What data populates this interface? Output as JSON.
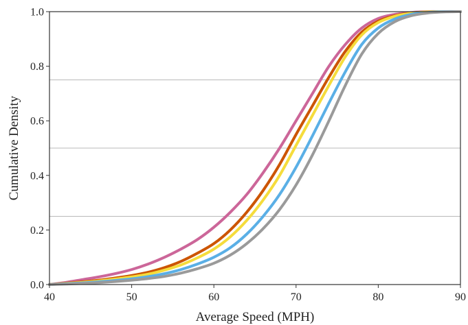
{
  "chart_data": {
    "type": "line",
    "title": "",
    "xlabel": "Average Speed (MPH)",
    "ylabel": "Cumulative Density",
    "xlim": [
      40,
      90
    ],
    "ylim": [
      0,
      1
    ],
    "xticks": [
      "40",
      "50",
      "60",
      "70",
      "80",
      "90"
    ],
    "yticks": [
      "0.0",
      "0.2",
      "0.4",
      "0.6",
      "0.8",
      "1.0"
    ],
    "reference_lines_y": [
      0.25,
      0.5,
      0.75
    ],
    "grid": false,
    "x": [
      40,
      42,
      44,
      46,
      48,
      50,
      52,
      54,
      56,
      58,
      60,
      62,
      64,
      66,
      68,
      70,
      72,
      74,
      76,
      78,
      80,
      82,
      84,
      86,
      88,
      90
    ],
    "series": [
      {
        "color": "#cc6699",
        "values": [
          0.0,
          0.008,
          0.018,
          0.028,
          0.04,
          0.055,
          0.075,
          0.1,
          0.13,
          0.165,
          0.21,
          0.265,
          0.33,
          0.41,
          0.5,
          0.6,
          0.7,
          0.8,
          0.88,
          0.94,
          0.975,
          0.99,
          0.997,
          1.0,
          1.0,
          1.0
        ]
      },
      {
        "color": "#cc5500",
        "values": [
          0.0,
          0.005,
          0.01,
          0.016,
          0.024,
          0.033,
          0.045,
          0.062,
          0.085,
          0.115,
          0.15,
          0.2,
          0.265,
          0.345,
          0.44,
          0.55,
          0.655,
          0.76,
          0.855,
          0.925,
          0.965,
          0.985,
          0.995,
          0.999,
          1.0,
          1.0
        ]
      },
      {
        "color": "#f5dc3c",
        "values": [
          0.0,
          0.004,
          0.008,
          0.013,
          0.02,
          0.028,
          0.038,
          0.053,
          0.072,
          0.098,
          0.13,
          0.175,
          0.235,
          0.31,
          0.4,
          0.51,
          0.62,
          0.73,
          0.835,
          0.915,
          0.96,
          0.983,
          0.994,
          0.999,
          1.0,
          1.0
        ]
      },
      {
        "color": "#5aafe6",
        "values": [
          0.0,
          0.003,
          0.006,
          0.01,
          0.015,
          0.021,
          0.029,
          0.04,
          0.055,
          0.075,
          0.1,
          0.135,
          0.185,
          0.25,
          0.33,
          0.43,
          0.545,
          0.665,
          0.78,
          0.88,
          0.94,
          0.973,
          0.99,
          0.997,
          1.0,
          1.0
        ]
      },
      {
        "color": "#9a9a9a",
        "values": [
          0.0,
          0.002,
          0.004,
          0.007,
          0.011,
          0.016,
          0.022,
          0.03,
          0.042,
          0.058,
          0.078,
          0.108,
          0.15,
          0.205,
          0.275,
          0.365,
          0.475,
          0.6,
          0.73,
          0.845,
          0.92,
          0.963,
          0.985,
          0.995,
          0.999,
          1.0
        ]
      }
    ]
  }
}
